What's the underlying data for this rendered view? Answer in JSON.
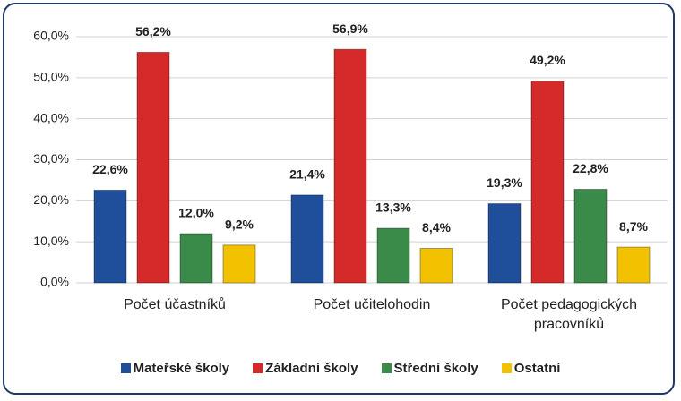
{
  "chart_data": {
    "type": "bar",
    "categories": [
      "Počet účastníků",
      "Počet učitelohodin",
      "Počet pedagogických pracovníků"
    ],
    "series": [
      {
        "name": "Mateřské školy",
        "color": "#1f4e9a",
        "values": [
          22.6,
          21.4,
          19.3
        ],
        "value_labels": [
          "22,6%",
          "21,4%",
          "19,3%"
        ]
      },
      {
        "name": "Základní školy",
        "color": "#d42a2a",
        "values": [
          56.2,
          56.9,
          49.2
        ],
        "value_labels": [
          "56,2%",
          "56,9%",
          "49,2%"
        ]
      },
      {
        "name": "Střední školy",
        "color": "#3a8a4a",
        "values": [
          12.0,
          13.3,
          22.8
        ],
        "value_labels": [
          "12,0%",
          "13,3%",
          "22,8%"
        ]
      },
      {
        "name": "Ostatní",
        "color": "#f2c200",
        "values": [
          9.2,
          8.4,
          8.7
        ],
        "value_labels": [
          "9,2%",
          "8,4%",
          "8,7%"
        ]
      }
    ],
    "ylim": [
      0,
      60
    ],
    "yticks": [
      {
        "value": 0,
        "label": "0,0%"
      },
      {
        "value": 10,
        "label": "10,0%"
      },
      {
        "value": 20,
        "label": "20,0%"
      },
      {
        "value": 30,
        "label": "30,0%"
      },
      {
        "value": 40,
        "label": "40,0%"
      },
      {
        "value": 50,
        "label": "50,0%"
      },
      {
        "value": 60,
        "label": "60,0%"
      }
    ],
    "grid": true,
    "legend": "bottom"
  }
}
